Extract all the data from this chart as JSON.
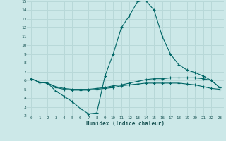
{
  "xlabel": "Humidex (Indice chaleur)",
  "ylabel": "",
  "background_color": "#cce8e8",
  "grid_color": "#b8d8d8",
  "line_color": "#006666",
  "xlim": [
    -0.5,
    23.5
  ],
  "ylim": [
    2,
    15
  ],
  "xticks": [
    0,
    1,
    2,
    3,
    4,
    5,
    6,
    7,
    8,
    9,
    10,
    11,
    12,
    13,
    14,
    15,
    16,
    17,
    18,
    19,
    20,
    21,
    22,
    23
  ],
  "yticks": [
    2,
    3,
    4,
    5,
    6,
    7,
    8,
    9,
    10,
    11,
    12,
    13,
    14,
    15
  ],
  "line1_x": [
    0,
    1,
    2,
    3,
    4,
    5,
    6,
    7,
    8,
    9,
    10,
    11,
    12,
    13,
    14,
    15,
    16,
    17,
    18,
    19,
    20,
    21,
    22,
    23
  ],
  "line1_y": [
    6.2,
    5.8,
    5.7,
    4.8,
    4.2,
    3.6,
    2.8,
    2.2,
    2.3,
    6.5,
    9.0,
    12.0,
    13.4,
    15.0,
    15.1,
    14.0,
    11.0,
    9.0,
    7.8,
    7.2,
    6.9,
    6.5,
    6.0,
    5.2
  ],
  "line2_x": [
    0,
    1,
    2,
    3,
    4,
    5,
    6,
    7,
    8,
    9,
    10,
    11,
    12,
    13,
    14,
    15,
    16,
    17,
    18,
    19,
    20,
    21,
    22,
    23
  ],
  "line2_y": [
    6.2,
    5.8,
    5.7,
    5.3,
    5.1,
    5.0,
    5.0,
    5.0,
    5.1,
    5.2,
    5.4,
    5.5,
    5.7,
    5.9,
    6.1,
    6.2,
    6.2,
    6.3,
    6.3,
    6.3,
    6.3,
    6.2,
    6.0,
    5.2
  ],
  "line3_x": [
    0,
    1,
    2,
    3,
    4,
    5,
    6,
    7,
    8,
    9,
    10,
    11,
    12,
    13,
    14,
    15,
    16,
    17,
    18,
    19,
    20,
    21,
    22,
    23
  ],
  "line3_y": [
    6.2,
    5.8,
    5.7,
    5.2,
    5.0,
    4.9,
    4.9,
    4.9,
    5.0,
    5.1,
    5.2,
    5.4,
    5.5,
    5.6,
    5.7,
    5.7,
    5.7,
    5.7,
    5.7,
    5.6,
    5.5,
    5.3,
    5.1,
    5.0
  ]
}
